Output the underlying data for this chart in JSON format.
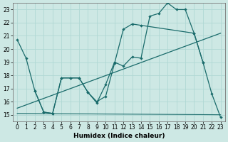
{
  "xlabel": "Humidex (Indice chaleur)",
  "background_color": "#cde8e4",
  "line_color": "#1a6b6b",
  "grid_color": "#b0d8d4",
  "xlim": [
    -0.5,
    23.5
  ],
  "ylim": [
    14.5,
    23.5
  ],
  "xticks": [
    0,
    1,
    2,
    3,
    4,
    5,
    6,
    7,
    8,
    9,
    10,
    11,
    12,
    13,
    14,
    15,
    16,
    17,
    18,
    19,
    20,
    21,
    22,
    23
  ],
  "yticks": [
    15,
    16,
    17,
    18,
    19,
    20,
    21,
    22,
    23
  ],
  "line1_x": [
    0,
    1,
    2,
    3,
    4,
    5,
    6,
    7,
    8,
    9,
    10,
    11,
    12,
    13,
    14,
    15,
    16,
    17,
    18,
    19,
    20,
    21
  ],
  "line1_y": [
    20.7,
    19.3,
    16.8,
    15.2,
    15.1,
    17.8,
    17.8,
    17.8,
    16.7,
    15.9,
    17.3,
    19.0,
    18.7,
    19.4,
    19.3,
    22.5,
    22.7,
    23.5,
    23.0,
    23.0,
    21.2,
    19.0
  ],
  "line2_x": [
    2,
    3,
    4,
    5,
    6,
    7,
    8,
    9,
    10,
    11,
    12,
    13,
    14,
    20,
    21,
    22,
    23
  ],
  "line2_y": [
    16.8,
    15.2,
    15.1,
    17.8,
    17.8,
    17.8,
    16.7,
    16.0,
    16.4,
    18.9,
    21.5,
    21.9,
    21.8,
    21.2,
    19.0,
    16.6,
    14.8
  ],
  "line3_x": [
    0,
    23
  ],
  "line3_y": [
    15.1,
    15.0
  ],
  "trend_x": [
    0,
    23
  ],
  "trend_y": [
    15.5,
    21.2
  ]
}
